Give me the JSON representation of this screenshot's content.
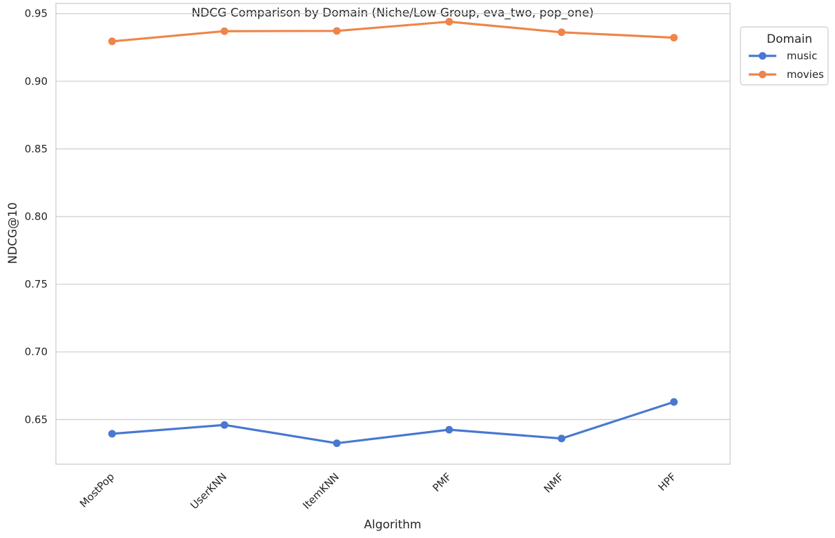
{
  "chart_data": {
    "type": "line",
    "title": "NDCG Comparison by Domain (Niche/Low Group, eva_two, pop_one)",
    "xlabel": "Algorithm",
    "ylabel": "NDCG@10",
    "categories": [
      "MostPop",
      "UserKNN",
      "ItemKNN",
      "PMF",
      "NMF",
      "HPF"
    ],
    "ylim": [
      0.617,
      0.9575
    ],
    "yticks": [
      0.65,
      0.7,
      0.75,
      0.8,
      0.85,
      0.9,
      0.95
    ],
    "ytick_labels": [
      "0.65",
      "0.70",
      "0.75",
      "0.80",
      "0.85",
      "0.90",
      "0.95"
    ],
    "grid": "horizontal",
    "legend": {
      "title": "Domain",
      "placement": "outside-top-right"
    },
    "series": [
      {
        "name": "music",
        "color": "#4878d0",
        "values": [
          0.6395,
          0.646,
          0.6325,
          0.6425,
          0.636,
          0.663
        ]
      },
      {
        "name": "movies",
        "color": "#ee854a",
        "values": [
          0.9295,
          0.937,
          0.9372,
          0.944,
          0.9362,
          0.9322
        ]
      }
    ]
  }
}
